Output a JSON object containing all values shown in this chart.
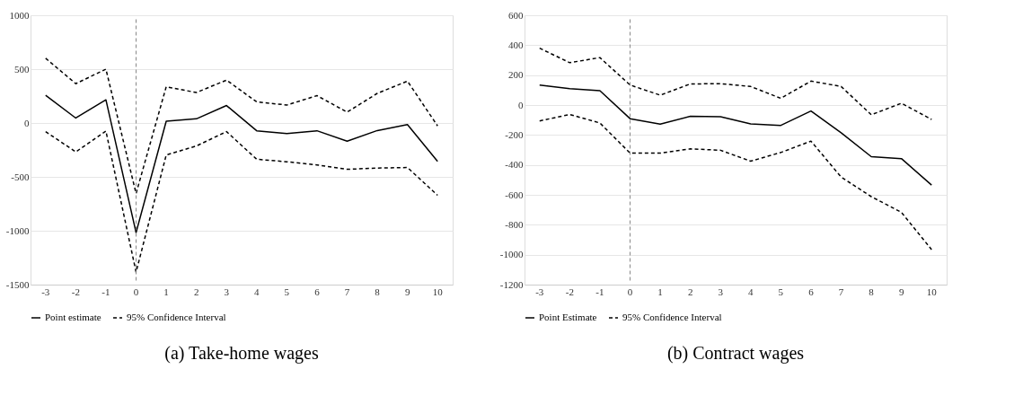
{
  "chart_data": [
    {
      "type": "line",
      "title": "(a) Take-home wages",
      "categories": [
        "-3",
        "-2",
        "-1",
        "0",
        "1",
        "2",
        "3",
        "4",
        "5",
        "6",
        "7",
        "8",
        "9",
        "10"
      ],
      "ylim": [
        -1500,
        1000
      ],
      "yticks": [
        -1500,
        -1000,
        -500,
        0,
        500,
        1000
      ],
      "grid": "y",
      "legend": "bottom",
      "series": [
        {
          "name": "Point estimate",
          "color": "#000000",
          "line_style": "solid",
          "values": [
            258,
            46,
            215,
            -1017,
            17,
            39,
            162,
            -72,
            -97,
            -72,
            -169,
            -70,
            -14,
            -357
          ]
        },
        {
          "name": "95% Confidence Interval",
          "color": "#000000",
          "line_style": "dashed",
          "values": [
            601,
            365,
            500,
            -654,
            336,
            283,
            398,
            196,
            167,
            254,
            101,
            275,
            389,
            -27
          ]
        },
        {
          "color": "#000000",
          "line_style": "dashed",
          "values": [
            -80,
            -268,
            -75,
            -1384,
            -297,
            -213,
            -80,
            -336,
            -360,
            -389,
            -430,
            -418,
            -413,
            -671
          ]
        }
      ],
      "ref_lines": [
        {
          "axis": "x",
          "value": "0",
          "color": "#888888",
          "line_style": "dashed"
        }
      ]
    },
    {
      "type": "line",
      "title": "(b) Contract wages",
      "categories": [
        "-3",
        "-2",
        "-1",
        "0",
        "1",
        "2",
        "3",
        "4",
        "5",
        "6",
        "7",
        "8",
        "9",
        "10"
      ],
      "ylim": [
        -1200,
        600
      ],
      "yticks": [
        -1200,
        -1000,
        -800,
        -600,
        -400,
        -200,
        0,
        200,
        400,
        600
      ],
      "grid": "y",
      "legend": "bottom",
      "series": [
        {
          "name": "Point Estimate",
          "color": "#000000",
          "line_style": "solid",
          "values": [
            134,
            110,
            96,
            -91,
            -127,
            -75,
            -78,
            -126,
            -136,
            -40,
            -185,
            -345,
            -358,
            -535
          ]
        },
        {
          "name": "95% Confidence Interval",
          "color": "#000000",
          "line_style": "dashed",
          "values": [
            380,
            283,
            317,
            134,
            66,
            141,
            143,
            124,
            45,
            160,
            124,
            -65,
            12,
            -96
          ]
        },
        {
          "color": "#000000",
          "line_style": "dashed",
          "values": [
            -106,
            -63,
            -120,
            -321,
            -321,
            -293,
            -302,
            -375,
            -317,
            -241,
            -481,
            -612,
            -717,
            -966
          ]
        }
      ],
      "ref_lines": [
        {
          "axis": "x",
          "value": "0",
          "color": "#888888",
          "line_style": "dashed"
        }
      ]
    }
  ]
}
